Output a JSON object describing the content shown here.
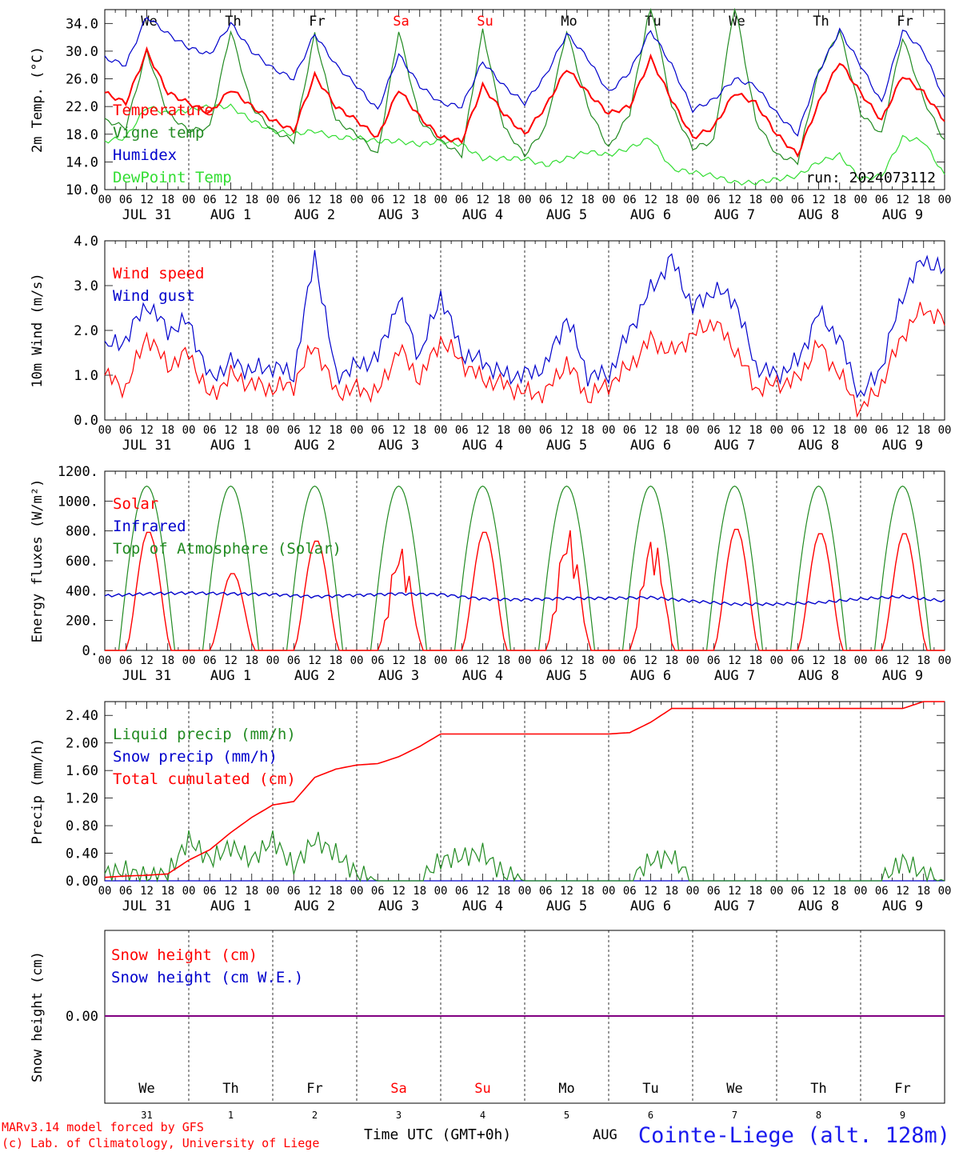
{
  "days": [
    "We",
    "Th",
    "Fr",
    "Sa",
    "Su",
    "Mo",
    "Tu",
    "We",
    "Th",
    "Fr"
  ],
  "weekend_days": [
    3,
    4
  ],
  "day_labels": [
    "JUL 31",
    "AUG  1",
    "AUG  2",
    "AUG  3",
    "AUG  4",
    "AUG  5",
    "AUG  6",
    "AUG  7",
    "AUG  8",
    "AUG  9"
  ],
  "hour_labels": [
    "00",
    "06",
    "12",
    "18"
  ],
  "date_numbers": [
    "31",
    "1",
    "2",
    "3",
    "4",
    "5",
    "6",
    "7",
    "8",
    "9"
  ],
  "footer": {
    "model": "MARv3.14 model forced by GFS",
    "copyright": "(c) Lab. of Climatology, University of Liege",
    "time_axis": "Time UTC (GMT+0h)",
    "month": "AUG",
    "station": "Cointe-Liege (alt. 128m)"
  },
  "colors": {
    "red": "#ff0000",
    "green": "#228b22",
    "blue": "#0000cc",
    "lime": "#33dd33",
    "purple": "#800080"
  },
  "chart_data": [
    {
      "type": "line",
      "ylabel": "2m Temp. (°C)",
      "ylim": [
        10,
        36
      ],
      "yticks": [
        "10.0",
        "14.0",
        "18.0",
        "22.0",
        "26.0",
        "30.0",
        "34.0"
      ],
      "annotation": "run: 2024073112",
      "x_hours": [
        0,
        6,
        12,
        18,
        24,
        30,
        36,
        42,
        48,
        54,
        60,
        66,
        72,
        78,
        84,
        90,
        96,
        102,
        108,
        114,
        120,
        126,
        132,
        138,
        144,
        150,
        156,
        162,
        168,
        174,
        180,
        186,
        192,
        198,
        204,
        210,
        216,
        222,
        228,
        234,
        240
      ],
      "series": [
        {
          "name": "Temperature",
          "color": "#ff0000",
          "values": [
            24,
            22.5,
            30,
            24,
            22.5,
            21,
            24.5,
            22,
            20,
            18.5,
            26.5,
            22,
            20,
            17.5,
            24.5,
            20.5,
            17.5,
            17,
            25,
            21,
            18,
            22,
            27.5,
            24,
            21,
            22,
            29,
            23,
            17.5,
            19,
            24,
            22.5,
            18,
            15,
            22.5,
            28.5,
            24,
            20,
            26.5,
            24,
            20
          ]
        },
        {
          "name": "Vigne temp",
          "color": "#228b22",
          "values": [
            20,
            19,
            30,
            21,
            18.5,
            19,
            33,
            22,
            18.5,
            17,
            32.5,
            20,
            18,
            15,
            33,
            20,
            17,
            15,
            33,
            19,
            15,
            19,
            33,
            22,
            16,
            21,
            37,
            22,
            16,
            17,
            37,
            20,
            15,
            14,
            27,
            33,
            21,
            18,
            32,
            23,
            17
          ]
        },
        {
          "name": "Humidex",
          "color": "#0000cc",
          "values": [
            29,
            28,
            35,
            32.5,
            30.5,
            29.5,
            34,
            30,
            27.5,
            26,
            32.5,
            28,
            25,
            21.5,
            29.5,
            25,
            22.5,
            22,
            28.5,
            25,
            22.5,
            26.5,
            32.5,
            29,
            24,
            27,
            33,
            28,
            21.5,
            23,
            26,
            25,
            21,
            18,
            27,
            33,
            28,
            22.5,
            33,
            30,
            23
          ]
        },
        {
          "name": "DewPoint Temp",
          "color": "#33dd33",
          "values": [
            17,
            17.5,
            22,
            21,
            21.5,
            22,
            22,
            20,
            18.5,
            18,
            18.5,
            17.5,
            17.5,
            17,
            17,
            16.5,
            17,
            16.5,
            14.5,
            14.5,
            14.5,
            13.5,
            14.5,
            15.5,
            15,
            16,
            17.5,
            13,
            12.5,
            12,
            11,
            11,
            11.5,
            12,
            14,
            15,
            11.5,
            12,
            17.5,
            17,
            12
          ]
        }
      ]
    },
    {
      "type": "line",
      "ylabel": "10m Wind (m/s)",
      "ylim": [
        0,
        4
      ],
      "yticks": [
        "0.0",
        "1.0",
        "2.0",
        "3.0",
        "4.0"
      ],
      "x_hours": [
        0,
        6,
        12,
        18,
        24,
        30,
        36,
        42,
        48,
        54,
        60,
        66,
        72,
        78,
        84,
        90,
        96,
        102,
        108,
        114,
        120,
        126,
        132,
        138,
        144,
        150,
        156,
        162,
        168,
        174,
        180,
        186,
        192,
        198,
        204,
        210,
        216,
        222,
        228,
        234,
        240
      ],
      "series": [
        {
          "name": "Wind speed",
          "color": "#ff0000",
          "values": [
            1,
            0.7,
            1.9,
            1.2,
            1.5,
            0.5,
            1,
            0.8,
            0.7,
            0.8,
            1.7,
            0.6,
            0.7,
            0.6,
            1.6,
            0.9,
            1.8,
            1.3,
            0.9,
            0.8,
            0.6,
            0.6,
            1.3,
            0.5,
            0.8,
            1.2,
            1.8,
            1.5,
            1.9,
            2.2,
            1.6,
            0.7,
            0.8,
            0.9,
            1.7,
            1,
            0.2,
            0.8,
            1.9,
            2.5,
            2.2
          ]
        },
        {
          "name": "Wind gust",
          "color": "#0000cc",
          "values": [
            1.6,
            1.8,
            2.6,
            2,
            2.2,
            0.9,
            1.3,
            1.1,
            1.2,
            1,
            3.7,
            1,
            1.2,
            1.4,
            2.7,
            1.4,
            2.8,
            1.5,
            1.3,
            1,
            1,
            1.2,
            2.3,
            1,
            1,
            2,
            2.9,
            3.6,
            2.5,
            2.9,
            2.7,
            1.2,
            1,
            1.3,
            2.4,
            1.8,
            0.5,
            1.2,
            2.8,
            3.6,
            3.3
          ]
        }
      ]
    },
    {
      "type": "line",
      "ylabel": "Energy fluxes (W/m²)",
      "ylim": [
        0,
        1200
      ],
      "yticks": [
        "0.",
        "200.",
        "400.",
        "600.",
        "800.",
        "1000.",
        "1200."
      ],
      "series": [
        {
          "name": "Solar",
          "color": "#ff0000",
          "peaks": [
            800,
            520,
            740,
            700,
            800,
            820,
            770,
            820,
            790,
            790
          ]
        },
        {
          "name": "Infrared",
          "color": "#0000cc",
          "x_hours": [
            0,
            12,
            24,
            36,
            48,
            60,
            72,
            84,
            96,
            108,
            120,
            132,
            144,
            156,
            168,
            180,
            192,
            204,
            216,
            228,
            240
          ],
          "values": [
            365,
            380,
            385,
            380,
            375,
            360,
            370,
            380,
            375,
            345,
            340,
            350,
            350,
            355,
            330,
            310,
            310,
            320,
            345,
            360,
            330
          ]
        },
        {
          "name": "Top of Atmosphere (Solar)",
          "color": "#228b22",
          "peak": 1100
        }
      ]
    },
    {
      "type": "line",
      "ylabel": "Precip (mm/h)",
      "ylim": [
        0,
        2.6
      ],
      "yticks": [
        "0.00",
        "0.40",
        "0.80",
        "1.20",
        "1.60",
        "2.00",
        "2.40"
      ],
      "x_hours": [
        0,
        6,
        12,
        18,
        24,
        30,
        36,
        42,
        48,
        54,
        60,
        66,
        72,
        78,
        84,
        90,
        96,
        102,
        108,
        114,
        120,
        126,
        132,
        138,
        144,
        150,
        156,
        162,
        168,
        174,
        180,
        186,
        192,
        198,
        204,
        210,
        216,
        222,
        228,
        234,
        240
      ],
      "series": [
        {
          "name": "Liquid precip (mm/h)",
          "color": "#228b22",
          "values": [
            0.1,
            0.15,
            0.05,
            0.1,
            0.6,
            0.3,
            0.5,
            0.3,
            0.6,
            0.2,
            0.6,
            0.4,
            0.1,
            0,
            0,
            0,
            0.3,
            0.35,
            0.4,
            0.1,
            0,
            0,
            0,
            0,
            0,
            0,
            0.3,
            0.35,
            0,
            0,
            0,
            0,
            0,
            0,
            0,
            0,
            0,
            0,
            0.3,
            0.1,
            0
          ]
        },
        {
          "name": "Snow precip (mm/h)",
          "color": "#0000cc",
          "values": [
            0,
            0,
            0,
            0,
            0,
            0,
            0,
            0,
            0,
            0,
            0,
            0,
            0,
            0,
            0,
            0,
            0,
            0,
            0,
            0,
            0,
            0,
            0,
            0,
            0,
            0,
            0,
            0,
            0,
            0,
            0,
            0,
            0,
            0,
            0,
            0,
            0,
            0,
            0,
            0,
            0
          ]
        },
        {
          "name": "Total cumulated (cm)",
          "color": "#ff0000",
          "values": [
            0.05,
            0.07,
            0.08,
            0.1,
            0.3,
            0.45,
            0.7,
            0.92,
            1.1,
            1.15,
            1.5,
            1.62,
            1.68,
            1.7,
            1.8,
            1.95,
            2.13,
            2.13,
            2.13,
            2.13,
            2.13,
            2.13,
            2.13,
            2.13,
            2.13,
            2.15,
            2.3,
            2.5,
            2.5,
            2.5,
            2.5,
            2.5,
            2.5,
            2.5,
            2.5,
            2.5,
            2.5,
            2.5,
            2.5,
            2.6,
            2.62
          ]
        }
      ]
    },
    {
      "type": "line",
      "ylabel": "Snow height (cm)",
      "yticks": [
        "0.00"
      ],
      "series": [
        {
          "name": "Snow height (cm)",
          "color": "#ff0000",
          "values": [
            0,
            0
          ]
        },
        {
          "name": "Snow height (cm W.E.)",
          "color": "#0000cc",
          "values": [
            0,
            0
          ]
        }
      ]
    }
  ]
}
